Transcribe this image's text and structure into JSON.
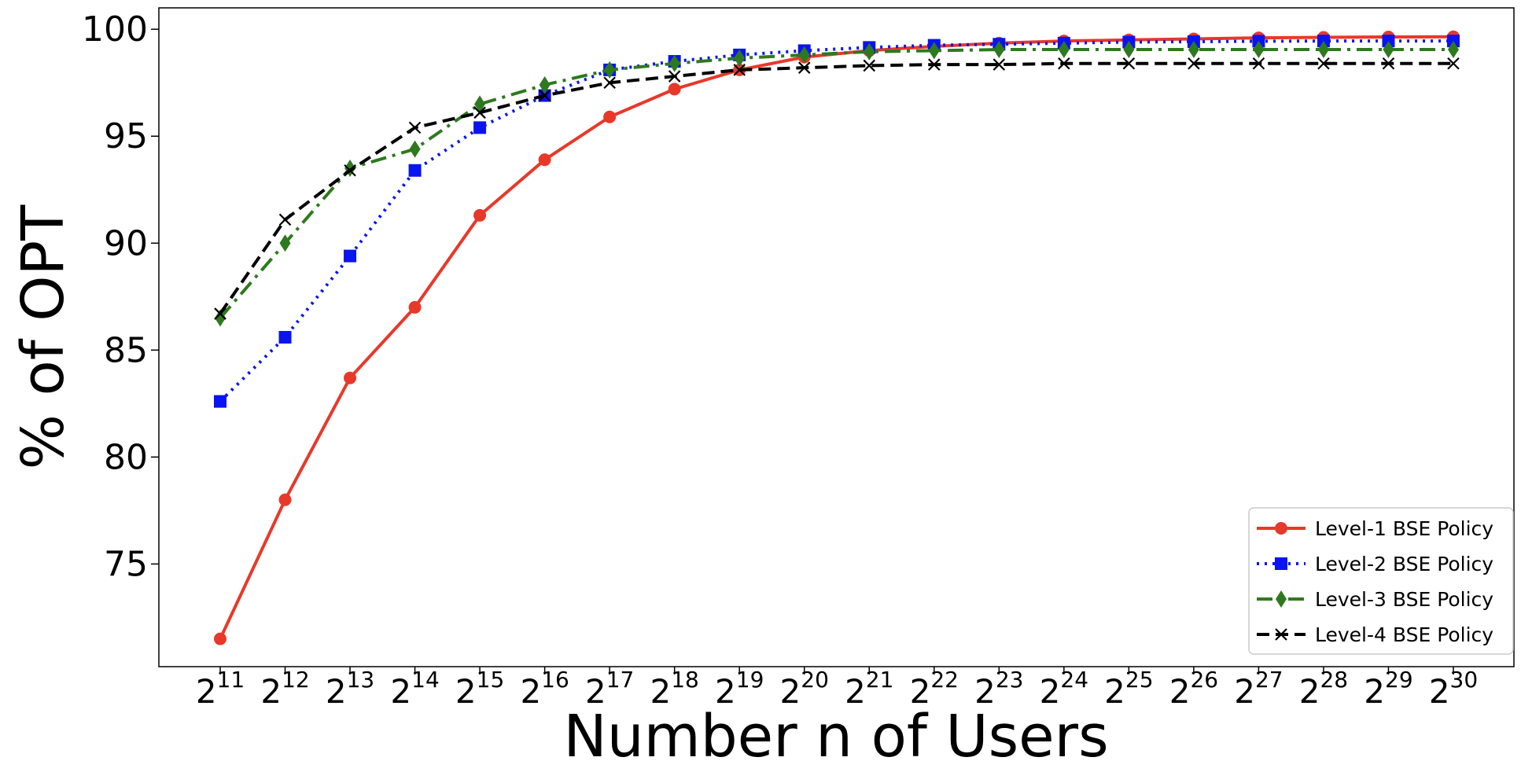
{
  "chart_data": {
    "type": "line",
    "xlabel": "Number n of Users",
    "ylabel": "% of OPT",
    "x_base": "2",
    "x_exponents": [
      "11",
      "12",
      "13",
      "14",
      "15",
      "16",
      "17",
      "18",
      "19",
      "20",
      "21",
      "22",
      "23",
      "24",
      "25",
      "26",
      "27",
      "28",
      "29",
      "30"
    ],
    "ylim": [
      70.2,
      101.0
    ],
    "yticks": [
      "75",
      "80",
      "85",
      "90",
      "95",
      "100"
    ],
    "grid": false,
    "legend_position": "lower-right",
    "series": [
      {
        "name": "Level-1 BSE Policy",
        "color": "#e8382a",
        "line_style": "solid",
        "marker": "circle",
        "values": [
          71.5,
          78.0,
          83.7,
          87.0,
          91.3,
          93.9,
          95.9,
          97.2,
          98.1,
          98.7,
          99.0,
          99.2,
          99.35,
          99.45,
          99.5,
          99.55,
          99.6,
          99.62,
          99.64,
          99.65
        ]
      },
      {
        "name": "Level-2 BSE Policy",
        "color": "#0a14f0",
        "line_style": "dotted",
        "marker": "square",
        "values": [
          82.6,
          85.6,
          89.4,
          93.4,
          95.4,
          96.9,
          98.1,
          98.5,
          98.8,
          99.0,
          99.15,
          99.25,
          99.3,
          99.35,
          99.4,
          99.42,
          99.44,
          99.45,
          99.45,
          99.45
        ]
      },
      {
        "name": "Level-3 BSE Policy",
        "color": "#2d7a1e",
        "line_style": "dashdot",
        "marker": "diamond",
        "values": [
          86.5,
          90.0,
          93.5,
          94.4,
          96.5,
          97.4,
          98.1,
          98.4,
          98.65,
          98.8,
          98.95,
          99.0,
          99.05,
          99.05,
          99.05,
          99.05,
          99.05,
          99.05,
          99.05,
          99.05
        ]
      },
      {
        "name": "Level-4 BSE Policy",
        "color": "#000000",
        "line_style": "dashed",
        "marker": "x",
        "values": [
          86.7,
          91.1,
          93.4,
          95.4,
          96.1,
          96.9,
          97.5,
          97.8,
          98.1,
          98.2,
          98.3,
          98.35,
          98.35,
          98.4,
          98.4,
          98.4,
          98.4,
          98.4,
          98.4,
          98.4
        ]
      }
    ]
  }
}
